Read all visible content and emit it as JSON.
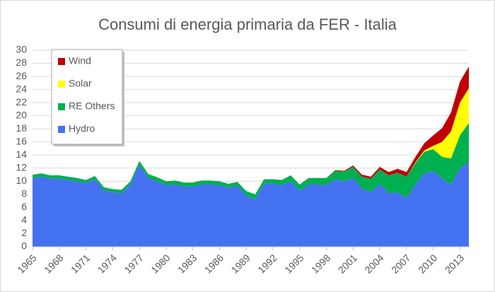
{
  "chart_data": {
    "type": "stacked-area",
    "title": "Consumi di energia primaria da FER - Italia",
    "x": [
      1965,
      1966,
      1967,
      1968,
      1969,
      1970,
      1971,
      1972,
      1973,
      1974,
      1975,
      1976,
      1977,
      1978,
      1979,
      1980,
      1981,
      1982,
      1983,
      1984,
      1985,
      1986,
      1987,
      1988,
      1989,
      1990,
      1991,
      1992,
      1993,
      1994,
      1995,
      1996,
      1997,
      1998,
      1999,
      2000,
      2001,
      2002,
      2003,
      2004,
      2005,
      2006,
      2007,
      2008,
      2009,
      2010,
      2011,
      2012,
      2013,
      2014
    ],
    "series": [
      {
        "name": "Hydro",
        "color": "#4472f0",
        "values": [
          10.5,
          10.7,
          10.4,
          10.4,
          10.2,
          10.0,
          9.7,
          10.3,
          8.6,
          8.3,
          8.2,
          9.5,
          12.5,
          10.5,
          10.0,
          9.4,
          9.5,
          9.2,
          9.2,
          9.5,
          9.5,
          9.4,
          9.0,
          9.3,
          7.8,
          7.2,
          9.7,
          9.6,
          9.4,
          10.0,
          8.6,
          9.5,
          9.5,
          9.4,
          10.3,
          10.0,
          10.5,
          8.9,
          8.3,
          9.6,
          8.2,
          8.3,
          7.5,
          9.5,
          11.2,
          11.6,
          10.4,
          9.5,
          12.0,
          12.9
        ]
      },
      {
        "name": "RE Others",
        "color": "#00b050",
        "values": [
          0.5,
          0.5,
          0.5,
          0.5,
          0.5,
          0.5,
          0.5,
          0.5,
          0.5,
          0.5,
          0.5,
          0.5,
          0.6,
          0.6,
          0.6,
          0.6,
          0.6,
          0.6,
          0.6,
          0.6,
          0.6,
          0.6,
          0.6,
          0.6,
          0.7,
          0.8,
          0.6,
          0.7,
          0.8,
          0.9,
          0.9,
          1.0,
          1.0,
          1.1,
          1.3,
          1.5,
          1.7,
          1.8,
          2.1,
          2.2,
          2.7,
          3.0,
          3.2,
          3.3,
          3.3,
          3.3,
          3.3,
          4.0,
          5.0,
          6.0
        ]
      },
      {
        "name": "Solar",
        "color": "#ffff00",
        "values": [
          0,
          0,
          0,
          0,
          0,
          0,
          0,
          0,
          0,
          0,
          0,
          0,
          0,
          0,
          0,
          0,
          0,
          0,
          0,
          0,
          0,
          0,
          0,
          0,
          0,
          0,
          0,
          0,
          0,
          0,
          0,
          0,
          0,
          0,
          0,
          0,
          0,
          0,
          0,
          0,
          0,
          0,
          0,
          0.1,
          0.2,
          0.5,
          2.3,
          4.1,
          5.0,
          5.3
        ]
      },
      {
        "name": "Wind",
        "color": "#c00000",
        "values": [
          0,
          0,
          0,
          0,
          0,
          0,
          0,
          0,
          0,
          0,
          0,
          0,
          0,
          0,
          0,
          0,
          0,
          0,
          0,
          0,
          0,
          0,
          0,
          0,
          0,
          0,
          0,
          0,
          0,
          0,
          0,
          0,
          0,
          0,
          0.1,
          0.1,
          0.2,
          0.3,
          0.3,
          0.4,
          0.5,
          0.6,
          0.7,
          0.8,
          1.1,
          1.6,
          2.1,
          2.9,
          3.2,
          3.3
        ]
      }
    ],
    "xlim": [
      1965,
      2014
    ],
    "xticks": [
      1965,
      1968,
      1971,
      1974,
      1977,
      1980,
      1983,
      1986,
      1989,
      1992,
      1995,
      1998,
      2001,
      2004,
      2007,
      2010,
      2013
    ],
    "ylim": [
      0,
      30
    ],
    "yticks": [
      0,
      2,
      4,
      6,
      8,
      10,
      12,
      14,
      16,
      18,
      20,
      22,
      24,
      26,
      28,
      30
    ],
    "grid": true,
    "legend": "upper-left"
  }
}
